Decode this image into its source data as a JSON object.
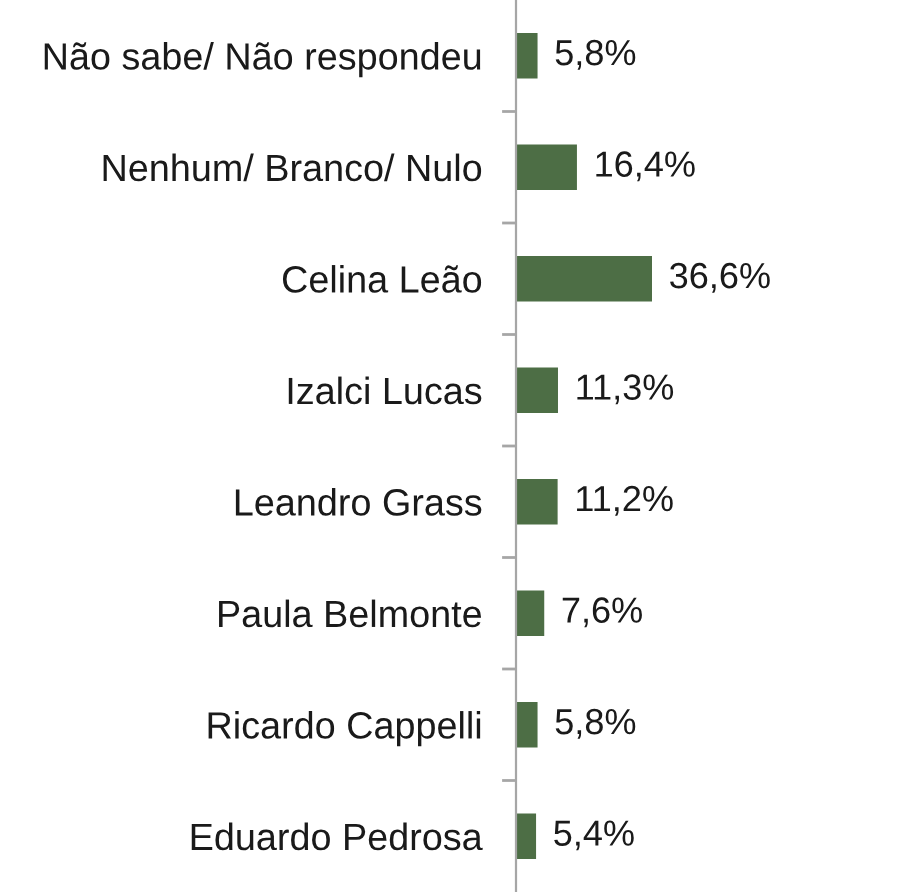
{
  "chart_data": {
    "type": "bar",
    "orientation": "horizontal",
    "categories": [
      "Não sabe/ Não respondeu",
      "Nenhum/ Branco/ Nulo",
      "Celina Leão",
      "Izalci Lucas",
      "Leandro Grass",
      "Paula Belmonte",
      "Ricardo Cappelli",
      "Eduardo Pedrosa"
    ],
    "values": [
      5.8,
      16.4,
      36.6,
      11.3,
      11.2,
      7.6,
      5.8,
      5.4
    ],
    "value_labels": [
      "5,8%",
      "16,4%",
      "36,6%",
      "11,3%",
      "11,2%",
      "7,6%",
      "5,8%",
      "5,4%"
    ],
    "color": "#4d6e45",
    "tick_labels": "y"
  }
}
